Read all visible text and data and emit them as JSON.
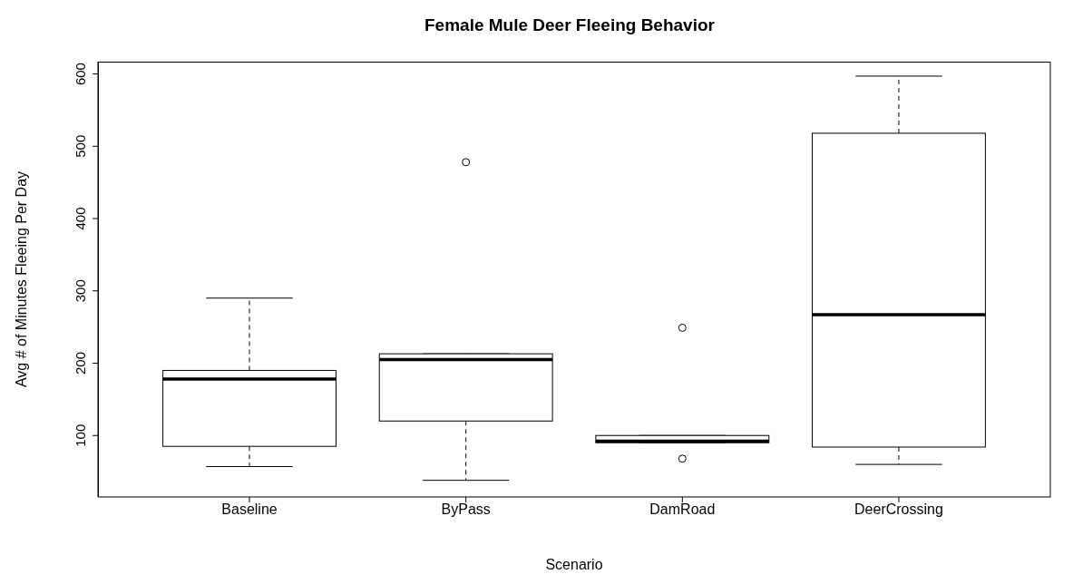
{
  "chart_data": {
    "type": "box",
    "title": "Female Mule Deer Fleeing Behavior",
    "xlabel": "Scenario",
    "ylabel": "Avg # of Minutes Fleeing Per Day",
    "categories": [
      "Baseline",
      "ByPass",
      "DamRoad",
      "DeerCrossing"
    ],
    "boxes": [
      {
        "low": 57,
        "q1": 85,
        "median": 178,
        "q3": 190,
        "high": 290
      },
      {
        "low": 38,
        "q1": 120,
        "median": 205,
        "q3": 213,
        "high": 213,
        "outliers": [
          478
        ]
      },
      {
        "low": 90,
        "q1": 90,
        "median": 92,
        "q3": 100,
        "high": 100,
        "outliers": [
          249,
          68
        ]
      },
      {
        "low": 60,
        "q1": 84,
        "median": 267,
        "q3": 518,
        "high": 597
      }
    ],
    "ylim": [
      15,
      617
    ],
    "yticks": [
      100,
      200,
      300,
      400,
      500,
      600
    ],
    "grid": false
  }
}
